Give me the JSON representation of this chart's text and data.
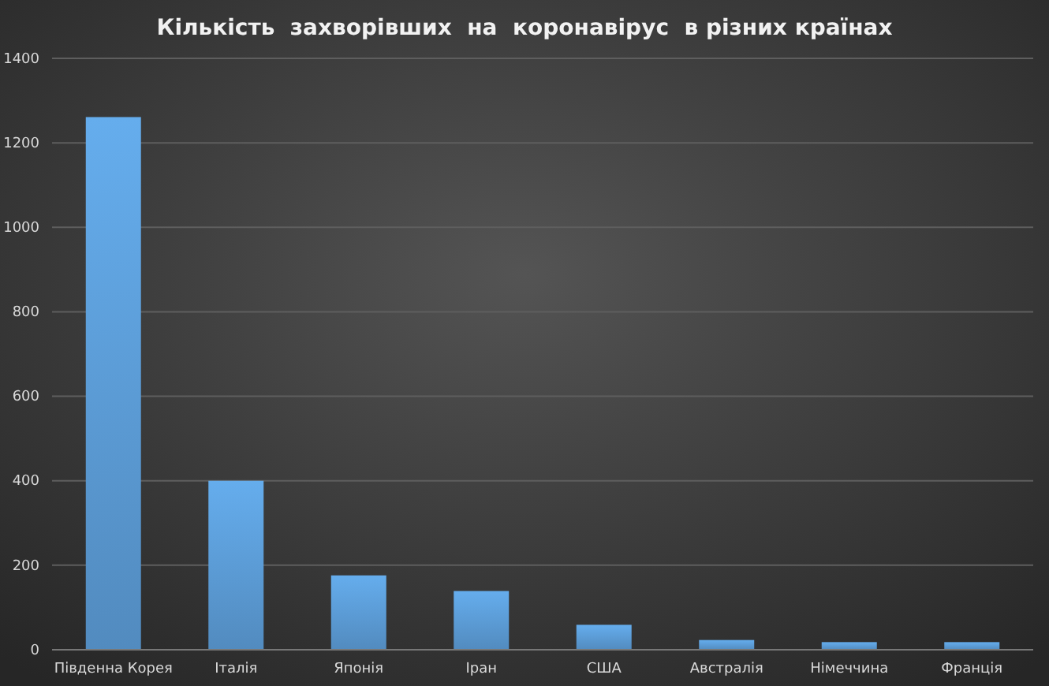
{
  "chart_data": {
    "type": "bar",
    "title": "Кількість  захворівших  на  коронавірус  в різних країнах",
    "categories": [
      "Південна Корея",
      "Італія",
      "Японія",
      "Іран",
      "США",
      "Австралія",
      "Німеччина",
      "Франція"
    ],
    "values": [
      1261,
      400,
      176,
      139,
      59,
      23,
      18,
      18
    ],
    "color": "#5b9bd5",
    "ylim": [
      0,
      1400
    ],
    "yticks": [
      0,
      200,
      400,
      600,
      800,
      1000,
      1200,
      1400
    ],
    "grid": "y"
  }
}
